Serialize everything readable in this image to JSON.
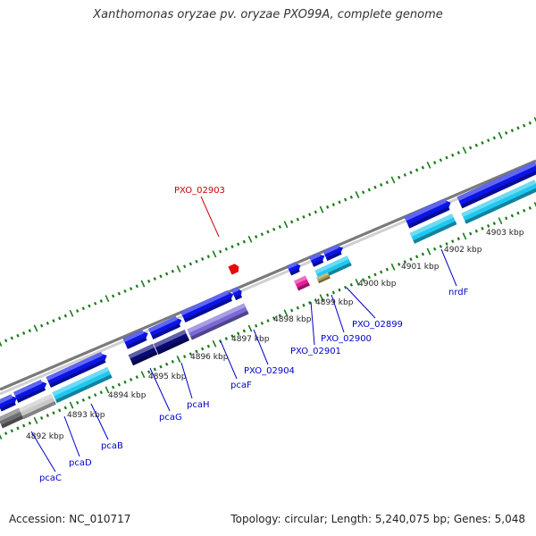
{
  "title": "Xanthomonas oryzae pv. oryzae PXO99A, complete genome",
  "footer": {
    "accession": "Accession: NC_010717",
    "topology": "Topology: circular; Length: 5,240,075 bp; Genes: 5,048"
  },
  "colors": {
    "backbone": "#8c8c8c",
    "tick": "#1a7a1a",
    "gene_blue": "#0a14e6",
    "gene_cyan": "#1ec8f0",
    "gene_navy": "#0a0a78",
    "gene_lavender": "#7a6ad6",
    "gene_gray": "#707070",
    "gene_silver": "#c8c8c8",
    "gene_magenta": "#e61e9a",
    "gene_red": "#e60a0a",
    "gene_olive": "#a89a50",
    "label_blue": "#0000cc",
    "label_red": "#cc0000"
  },
  "tick_labels": [
    "4892 kbp",
    "4893 kbp",
    "4894 kbp",
    "4895 kbp",
    "4896 kbp",
    "4897 kbp",
    "4898 kbp",
    "4899 kbp",
    "4900 kbp",
    "4901 kbp",
    "4902 kbp",
    "4903 kbp"
  ],
  "gene_labels": [
    "PXO_02903",
    "pcaC",
    "pcaD",
    "pcaB",
    "pcaG",
    "pcaH",
    "pcaF",
    "PXO_02904",
    "PXO_02901",
    "PXO_02900",
    "PXO_02899",
    "nrdF"
  ]
}
